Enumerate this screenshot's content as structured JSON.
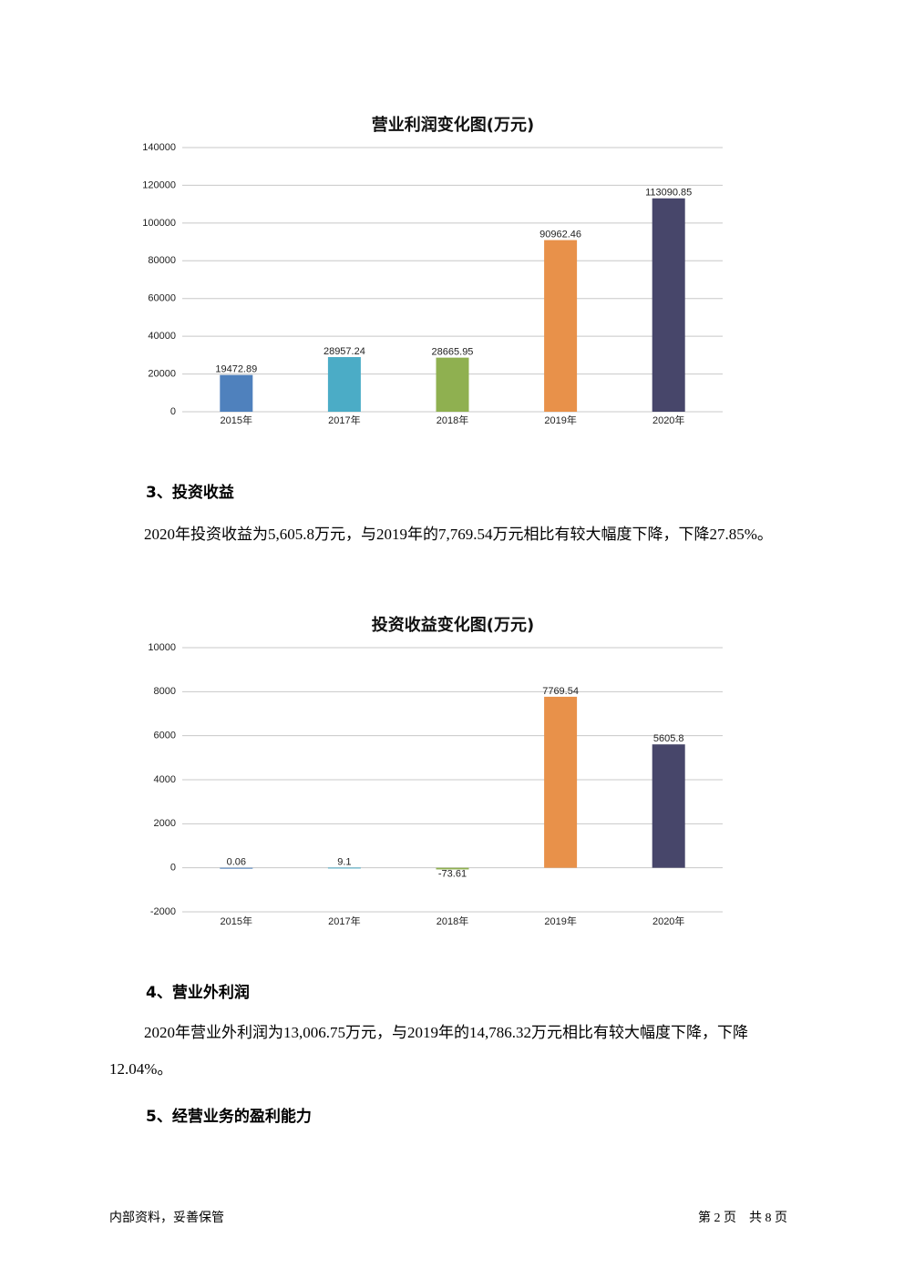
{
  "chart_data": [
    {
      "type": "bar",
      "title": "营业利润变化图(万元)",
      "categories": [
        "2015年",
        "2017年",
        "2018年",
        "2019年",
        "2020年"
      ],
      "values": [
        19472.89,
        28957.24,
        28665.95,
        90962.46,
        113090.85
      ],
      "colors": [
        "#4f81bd",
        "#4bacc6",
        "#8fb050",
        "#e8914a",
        "#47466a"
      ],
      "ylim": [
        0,
        140000
      ],
      "yticks": [
        0,
        20000,
        40000,
        60000,
        80000,
        100000,
        120000,
        140000
      ],
      "grid": true
    },
    {
      "type": "bar",
      "title": "投资收益变化图(万元)",
      "categories": [
        "2015年",
        "2017年",
        "2018年",
        "2019年",
        "2020年"
      ],
      "values": [
        0.06,
        9.1,
        -73.61,
        7769.54,
        5605.8
      ],
      "colors": [
        "#4f81bd",
        "#4bacc6",
        "#8fb050",
        "#e8914a",
        "#47466a"
      ],
      "ylim": [
        -2000,
        10000
      ],
      "yticks": [
        -2000,
        0,
        2000,
        4000,
        6000,
        8000,
        10000
      ],
      "grid": true
    }
  ],
  "document": {
    "heading_3": "3、投资收益",
    "paragraph_3": "2020年投资收益为5,605.8万元，与2019年的7,769.54万元相比有较大幅度下降，下降27.85%。",
    "heading_4": "4、营业外利润",
    "paragraph_4": "2020年营业外利润为13,006.75万元，与2019年的14,786.32万元相比有较大幅度下降，下降12.04%。",
    "heading_5": "5、经营业务的盈利能力"
  },
  "footer": {
    "left": "内部资料，妥善保管",
    "right": "第 2 页　共 8 页"
  }
}
